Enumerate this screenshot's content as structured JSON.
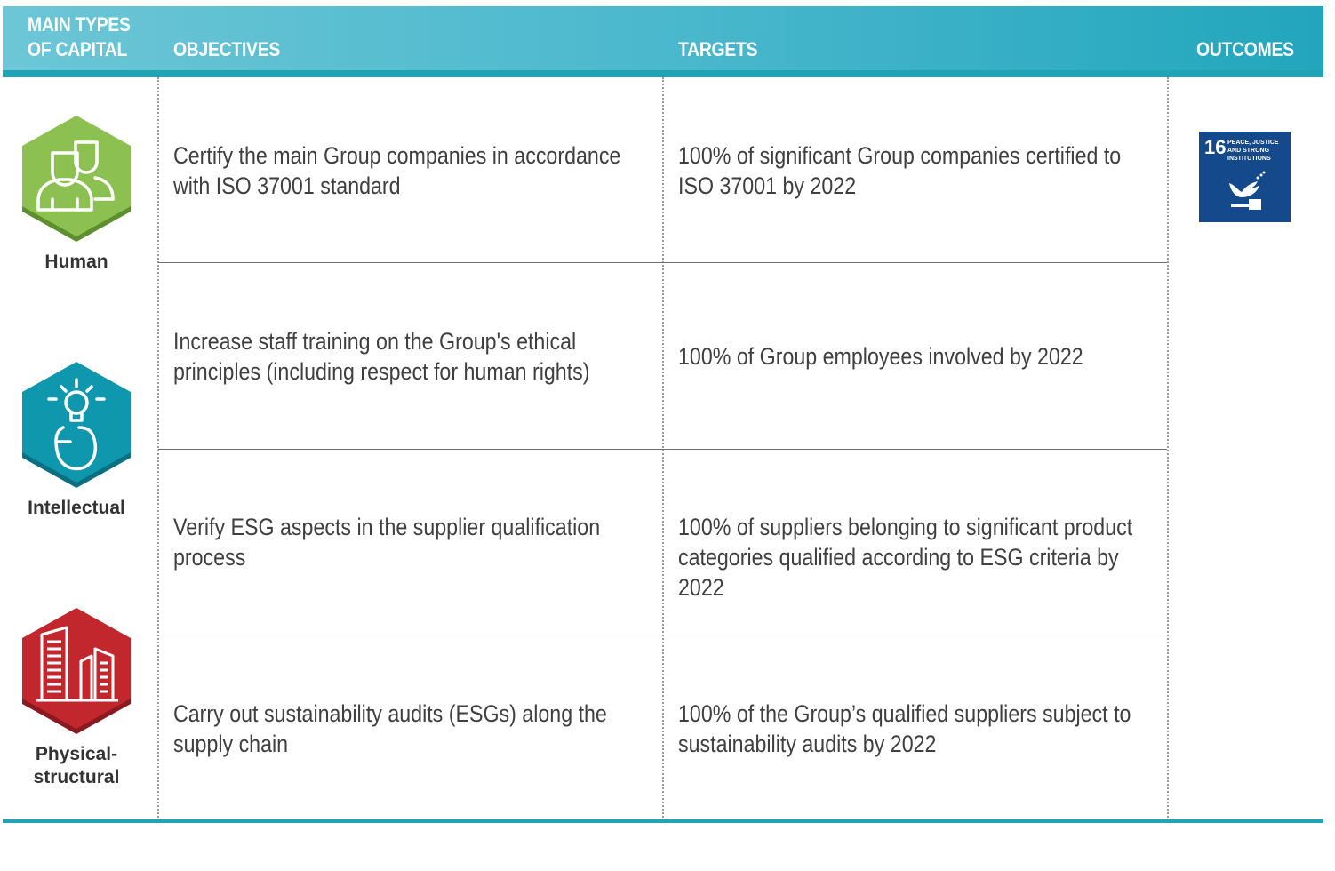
{
  "header": {
    "capital_line1": "MAIN TYPES",
    "capital_line2": "OF CAPITAL",
    "objectives": "OBJECTIVES",
    "targets": "TARGETS",
    "outcomes": "OUTCOMES"
  },
  "rows": [
    {
      "objective": "Certify the main Group companies in accordance with ISO 37001 standard",
      "target": "100% of significant Group companies certified to ISO 37001 by 2022"
    },
    {
      "objective": "Increase staff training on the Group's ethical principles (including respect for human rights)",
      "target": "100% of Group employees involved by 2022"
    },
    {
      "objective": "Verify ESG aspects in the supplier qualification process",
      "target": "100% of suppliers belonging to significant product categories qualified according to ESG criteria by 2022"
    },
    {
      "objective": "Carry out sustainability audits (ESGs) along the supply chain",
      "target": "100% of the Group’s qualified suppliers subject to sustainability audits by 2022"
    }
  ],
  "capitals": [
    {
      "label": "Human",
      "color": "#8cc152",
      "icon": "people-icon"
    },
    {
      "label": "Intellectual",
      "color": "#0f97ad",
      "icon": "lightbulb-head-icon"
    },
    {
      "label_line1": "Physical-",
      "label_line2": "structural",
      "color": "#c1272d",
      "icon": "buildings-icon"
    }
  ],
  "outcome": {
    "number": "16",
    "title_line1": "Peace, justice",
    "title_line2": "and strong",
    "title_line3": "institutions",
    "color": "#14498b",
    "icon": "dove-gavel-icon"
  }
}
